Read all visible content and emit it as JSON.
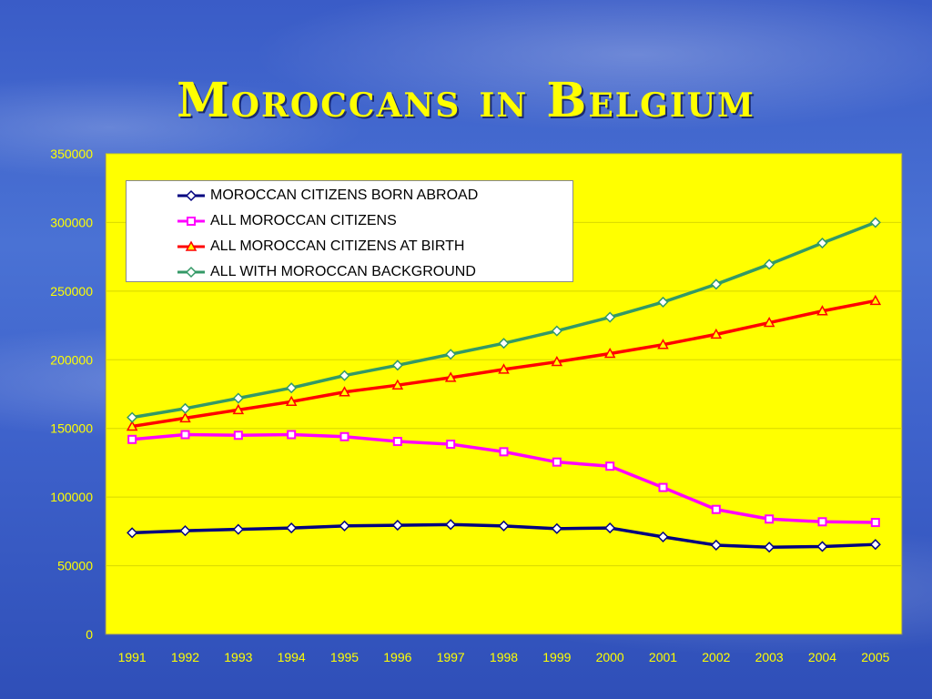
{
  "slide": {
    "title": "Moroccans in Belgium"
  },
  "chart_data": {
    "type": "line",
    "x": [
      "1991",
      "1992",
      "1993",
      "1994",
      "1995",
      "1996",
      "1997",
      "1998",
      "1999",
      "2000",
      "2001",
      "2002",
      "2003",
      "2004",
      "2005"
    ],
    "ylim": [
      0,
      350000
    ],
    "yticks": [
      "0",
      "50000",
      "100000",
      "150000",
      "200000",
      "250000",
      "300000",
      "350000"
    ],
    "grid": true,
    "plot_background": "#ffff00",
    "legend_position": "top-left",
    "series": [
      {
        "name": "MOROCCAN CITIZENS BORN ABROAD",
        "color": "#000080",
        "marker": "diamond",
        "values": [
          74000,
          75500,
          76500,
          77500,
          79000,
          79500,
          80000,
          79000,
          77000,
          77500,
          71000,
          65000,
          63500,
          64000,
          65500
        ]
      },
      {
        "name": "ALL MOROCCAN CITIZENS",
        "color": "#ff00ff",
        "marker": "square",
        "values": [
          142000,
          145500,
          145000,
          145500,
          144000,
          140500,
          138500,
          133000,
          125500,
          122500,
          107000,
          91000,
          84000,
          82000,
          81500
        ]
      },
      {
        "name": "ALL MOROCCAN CITIZENS AT BIRTH",
        "color": "#ff0000",
        "marker": "triangle",
        "values": [
          151500,
          157500,
          163500,
          169500,
          176500,
          181500,
          187000,
          193000,
          198500,
          204500,
          211000,
          218500,
          227000,
          235500,
          243000
        ]
      },
      {
        "name": "ALL WITH MOROCCAN BACKGROUND",
        "color": "#339966",
        "marker": "diamond-open",
        "values": [
          158000,
          164500,
          172000,
          179500,
          188500,
          196000,
          204000,
          212000,
          221000,
          231000,
          242000,
          255000,
          269500,
          285000,
          300000
        ]
      }
    ]
  }
}
